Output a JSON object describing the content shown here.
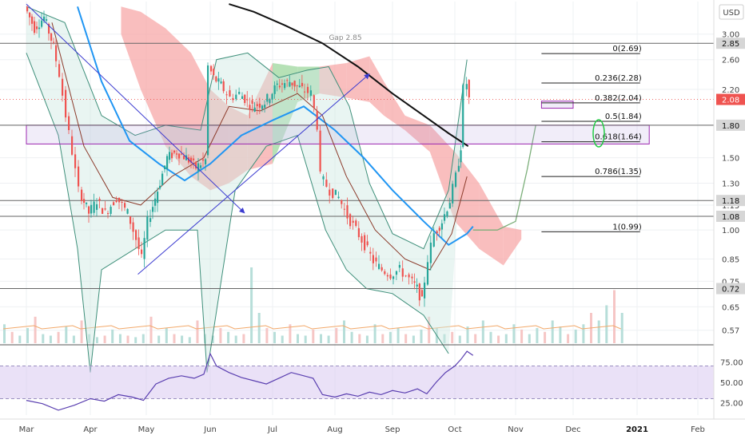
{
  "currency_label": "USD",
  "gap_label": "Gap 2.85",
  "colors": {
    "bull": "#26a69a",
    "bear": "#ef5350",
    "cloud_bear": "#f7a8a8",
    "cloud_bull": "#9ed79e",
    "bollinger": "#3e8f7a",
    "sma_long": "#111111",
    "ema_mid": "#2196f3",
    "ema_short": "#8b3a2a",
    "trend": "#3b3bd0",
    "zone": "#9c27b0",
    "rsi_line": "#5a3fb0",
    "rsi_band": "#d9c8f0",
    "price_tag": "#ef5350",
    "green_ellipse": "#22cc44"
  },
  "chart_data": [
    {
      "type": "candlestick",
      "title": "",
      "x_labels": [
        "Mar",
        "Apr",
        "May",
        "Jun",
        "Jul",
        "Aug",
        "Sep",
        "Oct",
        "Nov",
        "Dec",
        "2021",
        "Feb"
      ],
      "y_scale": "log",
      "ylim": [
        0.53,
        3.6
      ],
      "y_ticks": [
        3.0,
        2.6,
        2.2,
        1.8,
        1.5,
        1.3,
        1.15,
        1.0,
        0.85,
        0.75,
        0.65,
        0.57
      ],
      "y_tick_labels": [
        "3.00",
        "2.60",
        "2.20",
        "1.80",
        "1.50",
        "1.30",
        "1.15",
        "1.00",
        "0.85",
        "0.75",
        "0.65",
        "0.57"
      ],
      "horizontal_levels": [
        {
          "value": 2.85,
          "label": "2.85"
        },
        {
          "value": 1.8,
          "label": "1.80"
        },
        {
          "value": 1.18,
          "label": "1.18"
        },
        {
          "value": 1.08,
          "label": "1.08"
        },
        {
          "value": 0.72,
          "label": "0.72"
        }
      ],
      "last_price": {
        "value": 2.08,
        "label": "2.08"
      },
      "fib_levels": [
        {
          "value": 2.69,
          "label": "0(2.69)"
        },
        {
          "value": 2.28,
          "label": "0.236(2.28)"
        },
        {
          "value": 2.04,
          "label": "0.382(2.04)"
        },
        {
          "value": 1.84,
          "label": "0.5(1.84)"
        },
        {
          "value": 1.64,
          "label": "0.618(1.64)"
        },
        {
          "value": 1.35,
          "label": "0.786(1.35)"
        },
        {
          "value": 0.99,
          "label": "1(0.99)"
        }
      ],
      "price_series": [
        {
          "m": 0.0,
          "p": 3.5
        },
        {
          "m": 0.15,
          "p": 3.1
        },
        {
          "m": 0.3,
          "p": 3.3
        },
        {
          "m": 0.45,
          "p": 2.8
        },
        {
          "m": 0.55,
          "p": 2.4
        },
        {
          "m": 0.65,
          "p": 1.9
        },
        {
          "m": 0.75,
          "p": 1.55
        },
        {
          "m": 0.85,
          "p": 1.25
        },
        {
          "m": 1.0,
          "p": 1.1
        },
        {
          "m": 1.15,
          "p": 1.18
        },
        {
          "m": 1.3,
          "p": 1.1
        },
        {
          "m": 1.5,
          "p": 1.2
        },
        {
          "m": 1.7,
          "p": 1.1
        },
        {
          "m": 1.85,
          "p": 0.95
        },
        {
          "m": 1.95,
          "p": 0.85
        },
        {
          "m": 2.05,
          "p": 1.05
        },
        {
          "m": 2.2,
          "p": 1.25
        },
        {
          "m": 2.35,
          "p": 1.5
        },
        {
          "m": 2.5,
          "p": 1.55
        },
        {
          "m": 2.65,
          "p": 1.5
        },
        {
          "m": 2.8,
          "p": 1.42
        },
        {
          "m": 2.95,
          "p": 1.48
        },
        {
          "m": 3.0,
          "p": 2.5
        },
        {
          "m": 3.08,
          "p": 2.35
        },
        {
          "m": 3.2,
          "p": 2.25
        },
        {
          "m": 3.35,
          "p": 2.1
        },
        {
          "m": 3.5,
          "p": 2.15
        },
        {
          "m": 3.7,
          "p": 2.0
        },
        {
          "m": 3.9,
          "p": 2.05
        },
        {
          "m": 4.1,
          "p": 2.25
        },
        {
          "m": 4.3,
          "p": 2.3
        },
        {
          "m": 4.5,
          "p": 2.2
        },
        {
          "m": 4.65,
          "p": 2.15
        },
        {
          "m": 4.75,
          "p": 1.8
        },
        {
          "m": 4.8,
          "p": 1.35
        },
        {
          "m": 4.95,
          "p": 1.25
        },
        {
          "m": 5.1,
          "p": 1.2
        },
        {
          "m": 5.25,
          "p": 1.08
        },
        {
          "m": 5.4,
          "p": 1.0
        },
        {
          "m": 5.55,
          "p": 0.92
        },
        {
          "m": 5.7,
          "p": 0.84
        },
        {
          "m": 5.85,
          "p": 0.8
        },
        {
          "m": 6.0,
          "p": 0.78
        },
        {
          "m": 6.15,
          "p": 0.8
        },
        {
          "m": 6.3,
          "p": 0.76
        },
        {
          "m": 6.42,
          "p": 0.72
        },
        {
          "m": 6.5,
          "p": 0.67
        },
        {
          "m": 6.6,
          "p": 0.85
        },
        {
          "m": 6.7,
          "p": 0.98
        },
        {
          "m": 6.82,
          "p": 1.05
        },
        {
          "m": 6.95,
          "p": 1.18
        },
        {
          "m": 7.05,
          "p": 1.35
        },
        {
          "m": 7.12,
          "p": 1.6
        },
        {
          "m": 7.18,
          "p": 2.2
        },
        {
          "m": 7.22,
          "p": 2.28
        },
        {
          "m": 7.26,
          "p": 2.08
        }
      ],
      "sma_long": [
        {
          "m": 3.3,
          "p": 3.55
        },
        {
          "m": 3.7,
          "p": 3.4
        },
        {
          "m": 4.2,
          "p": 3.15
        },
        {
          "m": 4.8,
          "p": 2.85
        },
        {
          "m": 5.4,
          "p": 2.5
        },
        {
          "m": 6.0,
          "p": 2.15
        },
        {
          "m": 6.5,
          "p": 1.9
        },
        {
          "m": 6.9,
          "p": 1.72
        },
        {
          "m": 7.22,
          "p": 1.6
        }
      ],
      "ema_mid": [
        {
          "m": 0.8,
          "p": 3.5
        },
        {
          "m": 1.2,
          "p": 2.3
        },
        {
          "m": 1.7,
          "p": 1.65
        },
        {
          "m": 2.2,
          "p": 1.45
        },
        {
          "m": 2.6,
          "p": 1.32
        },
        {
          "m": 3.0,
          "p": 1.45
        },
        {
          "m": 3.5,
          "p": 1.7
        },
        {
          "m": 4.0,
          "p": 1.85
        },
        {
          "m": 4.5,
          "p": 2.0
        },
        {
          "m": 5.0,
          "p": 1.75
        },
        {
          "m": 5.5,
          "p": 1.5
        },
        {
          "m": 6.0,
          "p": 1.25
        },
        {
          "m": 6.5,
          "p": 1.05
        },
        {
          "m": 6.9,
          "p": 0.92
        },
        {
          "m": 7.2,
          "p": 0.98
        },
        {
          "m": 7.3,
          "p": 1.02
        }
      ],
      "ema_short": [
        {
          "m": 0.4,
          "p": 3.2
        },
        {
          "m": 0.9,
          "p": 1.6
        },
        {
          "m": 1.4,
          "p": 1.2
        },
        {
          "m": 1.9,
          "p": 1.15
        },
        {
          "m": 2.4,
          "p": 1.35
        },
        {
          "m": 2.9,
          "p": 1.5
        },
        {
          "m": 3.3,
          "p": 2.0
        },
        {
          "m": 3.8,
          "p": 1.95
        },
        {
          "m": 4.4,
          "p": 2.15
        },
        {
          "m": 4.8,
          "p": 1.9
        },
        {
          "m": 5.2,
          "p": 1.35
        },
        {
          "m": 5.7,
          "p": 1.0
        },
        {
          "m": 6.2,
          "p": 0.85
        },
        {
          "m": 6.6,
          "p": 0.8
        },
        {
          "m": 6.95,
          "p": 0.98
        },
        {
          "m": 7.2,
          "p": 1.35
        }
      ],
      "bb_upper": [
        {
          "m": 0.0,
          "p": 3.5
        },
        {
          "m": 0.6,
          "p": 3.2
        },
        {
          "m": 1.2,
          "p": 1.9
        },
        {
          "m": 1.8,
          "p": 1.7
        },
        {
          "m": 2.3,
          "p": 1.8
        },
        {
          "m": 2.85,
          "p": 1.75
        },
        {
          "m": 3.1,
          "p": 2.6
        },
        {
          "m": 3.6,
          "p": 2.7
        },
        {
          "m": 4.1,
          "p": 2.35
        },
        {
          "m": 4.55,
          "p": 2.45
        },
        {
          "m": 4.9,
          "p": 2.5
        },
        {
          "m": 5.25,
          "p": 2.0
        },
        {
          "m": 5.6,
          "p": 1.3
        },
        {
          "m": 6.0,
          "p": 0.98
        },
        {
          "m": 6.5,
          "p": 0.9
        },
        {
          "m": 6.9,
          "p": 1.25
        },
        {
          "m": 7.2,
          "p": 2.6
        }
      ],
      "bb_lower": [
        {
          "m": 0.0,
          "p": 2.7
        },
        {
          "m": 0.5,
          "p": 1.7
        },
        {
          "m": 0.8,
          "p": 0.9
        },
        {
          "m": 1.0,
          "p": 0.45
        },
        {
          "m": 1.2,
          "p": 0.8
        },
        {
          "m": 1.8,
          "p": 0.9
        },
        {
          "m": 2.3,
          "p": 1.0
        },
        {
          "m": 2.8,
          "p": 1.0
        },
        {
          "m": 2.95,
          "p": 0.45
        },
        {
          "m": 3.4,
          "p": 1.25
        },
        {
          "m": 3.9,
          "p": 1.6
        },
        {
          "m": 4.4,
          "p": 1.7
        },
        {
          "m": 4.85,
          "p": 1.0
        },
        {
          "m": 5.2,
          "p": 0.8
        },
        {
          "m": 5.55,
          "p": 0.72
        },
        {
          "m": 6.0,
          "p": 0.7
        },
        {
          "m": 6.5,
          "p": 0.62
        },
        {
          "m": 6.9,
          "p": 0.5
        }
      ],
      "cloud": [
        {
          "m": 1.55,
          "top": 3.5,
          "bot": 3.0,
          "dir": "bear"
        },
        {
          "m": 1.9,
          "top": 3.4,
          "bot": 2.2,
          "dir": "bear"
        },
        {
          "m": 2.3,
          "top": 3.1,
          "bot": 1.6,
          "dir": "bear"
        },
        {
          "m": 2.7,
          "top": 2.7,
          "bot": 1.35,
          "dir": "bear"
        },
        {
          "m": 3.0,
          "top": 2.2,
          "bot": 1.25,
          "dir": "bear"
        },
        {
          "m": 3.3,
          "top": 2.0,
          "bot": 1.3,
          "dir": "bear"
        },
        {
          "m": 3.6,
          "top": 1.9,
          "bot": 1.4,
          "dir": "bear"
        },
        {
          "m": 4.0,
          "top": 2.55,
          "bot": 1.45,
          "dir": "bull"
        },
        {
          "m": 4.4,
          "top": 2.5,
          "bot": 2.05,
          "dir": "bull"
        },
        {
          "m": 4.75,
          "top": 2.5,
          "bot": 2.15,
          "dir": "bear"
        },
        {
          "m": 5.2,
          "top": 2.55,
          "bot": 2.1,
          "dir": "bear"
        },
        {
          "m": 5.6,
          "top": 2.65,
          "bot": 2.05,
          "dir": "bear"
        },
        {
          "m": 5.85,
          "top": 2.3,
          "bot": 1.9,
          "dir": "bear"
        },
        {
          "m": 6.2,
          "top": 1.9,
          "bot": 1.75,
          "dir": "bear"
        },
        {
          "m": 6.6,
          "top": 1.8,
          "bot": 1.55,
          "dir": "bear"
        },
        {
          "m": 7.0,
          "top": 1.55,
          "bot": 1.05,
          "dir": "bear"
        },
        {
          "m": 7.4,
          "top": 1.3,
          "bot": 0.9,
          "dir": "bear"
        },
        {
          "m": 7.8,
          "top": 1.02,
          "bot": 0.82,
          "dir": "bear"
        },
        {
          "m": 8.1,
          "top": 1.0,
          "bot": 0.95,
          "dir": "bear"
        }
      ],
      "future_bands": [
        {
          "m": 7.3,
          "p": 1.0
        },
        {
          "m": 7.7,
          "p": 1.0
        },
        {
          "m": 8.0,
          "p": 1.05
        },
        {
          "m": 8.2,
          "p": 1.4
        },
        {
          "m": 8.35,
          "p": 1.8
        }
      ],
      "trend_down": {
        "from": {
          "m": 0.0,
          "p": 3.55
        },
        "to": {
          "m": 3.55,
          "p": 1.1
        }
      },
      "trend_up": {
        "from": {
          "m": 1.85,
          "p": 0.78
        },
        "to": {
          "m": 5.6,
          "p": 2.4
        }
      },
      "zones": [
        {
          "m1": 0.0,
          "m2": 10.2,
          "top": 1.8,
          "bot": 1.62
        },
        {
          "m1": 8.45,
          "m2": 9.0,
          "top": 2.06,
          "bot": 1.98
        }
      ],
      "volume_max": 1.0,
      "volume": [
        0.25,
        0.15,
        0.1,
        0.2,
        0.35,
        0.12,
        0.1,
        0.15,
        0.22,
        0.1,
        0.3,
        0.12,
        0.08,
        0.1,
        0.18,
        0.12,
        0.1,
        0.08,
        0.12,
        0.35,
        0.1,
        0.2,
        0.12,
        0.1,
        0.08,
        0.3,
        0.12,
        0.1,
        0.2,
        0.15,
        0.1,
        0.12,
        1.0,
        0.4,
        0.2,
        0.15,
        0.1,
        0.25,
        0.12,
        0.1,
        0.18,
        0.12,
        0.1,
        0.2,
        0.3,
        0.15,
        0.12,
        0.1,
        0.25,
        0.12,
        0.15,
        0.2,
        0.12,
        0.1,
        0.18,
        0.35,
        0.2,
        0.12,
        0.15,
        0.1,
        0.22,
        0.12,
        0.3,
        0.15,
        0.1,
        0.12,
        0.25,
        0.18,
        0.12,
        0.2,
        0.15,
        0.3,
        0.22,
        0.12,
        0.18,
        0.25,
        0.4,
        0.3,
        0.5,
        0.7,
        0.4
      ]
    },
    {
      "type": "line",
      "title": "",
      "ylim": [
        10,
        92
      ],
      "y_ticks": [
        75.0,
        50.0,
        25.0
      ],
      "y_tick_labels": [
        "75.00",
        "50.00",
        "25.00"
      ],
      "band": [
        30,
        70
      ],
      "rsi": [
        {
          "m": 0.0,
          "v": 28
        },
        {
          "m": 0.25,
          "v": 24
        },
        {
          "m": 0.5,
          "v": 16
        },
        {
          "m": 0.75,
          "v": 22
        },
        {
          "m": 1.0,
          "v": 30
        },
        {
          "m": 1.25,
          "v": 27
        },
        {
          "m": 1.5,
          "v": 35
        },
        {
          "m": 1.75,
          "v": 32
        },
        {
          "m": 1.95,
          "v": 28
        },
        {
          "m": 2.15,
          "v": 48
        },
        {
          "m": 2.35,
          "v": 55
        },
        {
          "m": 2.55,
          "v": 58
        },
        {
          "m": 2.75,
          "v": 55
        },
        {
          "m": 2.9,
          "v": 60
        },
        {
          "m": 3.0,
          "v": 85
        },
        {
          "m": 3.1,
          "v": 70
        },
        {
          "m": 3.3,
          "v": 62
        },
        {
          "m": 3.5,
          "v": 56
        },
        {
          "m": 3.7,
          "v": 52
        },
        {
          "m": 3.9,
          "v": 48
        },
        {
          "m": 4.1,
          "v": 55
        },
        {
          "m": 4.3,
          "v": 62
        },
        {
          "m": 4.5,
          "v": 58
        },
        {
          "m": 4.65,
          "v": 55
        },
        {
          "m": 4.8,
          "v": 35
        },
        {
          "m": 5.0,
          "v": 32
        },
        {
          "m": 5.2,
          "v": 36
        },
        {
          "m": 5.4,
          "v": 33
        },
        {
          "m": 5.6,
          "v": 38
        },
        {
          "m": 5.8,
          "v": 35
        },
        {
          "m": 6.0,
          "v": 40
        },
        {
          "m": 6.2,
          "v": 37
        },
        {
          "m": 6.4,
          "v": 42
        },
        {
          "m": 6.55,
          "v": 36
        },
        {
          "m": 6.7,
          "v": 50
        },
        {
          "m": 6.85,
          "v": 62
        },
        {
          "m": 7.0,
          "v": 70
        },
        {
          "m": 7.1,
          "v": 78
        },
        {
          "m": 7.2,
          "v": 88
        },
        {
          "m": 7.3,
          "v": 83
        }
      ]
    }
  ]
}
